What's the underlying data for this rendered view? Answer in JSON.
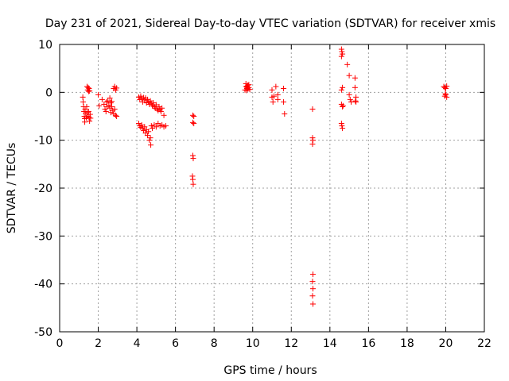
{
  "chart_data": {
    "type": "scatter",
    "title": "Day 231 of 2021, Sidereal Day-to-day VTEC variation (SDTVAR) for receiver xmis",
    "xlabel": "GPS time / hours",
    "ylabel": "SDTVAR / TECUs",
    "xlim": [
      0,
      22
    ],
    "ylim": [
      -50,
      10
    ],
    "xticks": [
      0,
      2,
      4,
      6,
      8,
      10,
      12,
      14,
      16,
      18,
      20,
      22
    ],
    "yticks": [
      10,
      0,
      -10,
      -20,
      -30,
      -40,
      -50
    ],
    "grid": true,
    "marker": "+",
    "series": [
      {
        "name": "SDTVAR",
        "color": "#ff0000",
        "points": [
          [
            1.2,
            -1.0
          ],
          [
            1.22,
            -2.0
          ],
          [
            1.24,
            -3.0
          ],
          [
            1.26,
            -4.0
          ],
          [
            1.28,
            -5.0
          ],
          [
            1.3,
            -5.5
          ],
          [
            1.3,
            -6.2
          ],
          [
            1.32,
            -3.5
          ],
          [
            1.35,
            -4.5
          ],
          [
            1.38,
            -5.3
          ],
          [
            1.4,
            -3.0
          ],
          [
            1.42,
            -4.2
          ],
          [
            1.45,
            -5.0
          ],
          [
            1.5,
            -4.0
          ],
          [
            1.52,
            -5.2
          ],
          [
            1.55,
            -6.0
          ],
          [
            1.58,
            -4.6
          ],
          [
            1.6,
            -5.4
          ],
          [
            1.42,
            1.2
          ],
          [
            1.45,
            0.5
          ],
          [
            1.48,
            1.0
          ],
          [
            1.5,
            0.2
          ],
          [
            1.52,
            0.8
          ],
          [
            1.55,
            0.3
          ],
          [
            2.0,
            -0.5
          ],
          [
            2.05,
            -2.8
          ],
          [
            2.2,
            -1.5
          ],
          [
            2.3,
            -2.5
          ],
          [
            2.35,
            -3.5
          ],
          [
            2.4,
            -4.0
          ],
          [
            2.42,
            -2.0
          ],
          [
            2.45,
            -3.0
          ],
          [
            2.5,
            -1.8
          ],
          [
            2.55,
            -2.7
          ],
          [
            2.6,
            -3.3
          ],
          [
            2.65,
            -4.2
          ],
          [
            2.7,
            -3.0
          ],
          [
            2.75,
            -3.8
          ],
          [
            2.8,
            -4.5
          ],
          [
            2.85,
            -3.5
          ],
          [
            2.9,
            -4.8
          ],
          [
            2.95,
            -5.0
          ],
          [
            2.6,
            -1.2
          ],
          [
            2.65,
            -2.2
          ],
          [
            2.7,
            -1.9
          ],
          [
            2.8,
            0.8
          ],
          [
            2.85,
            1.2
          ],
          [
            2.9,
            0.5
          ],
          [
            2.95,
            0.9
          ],
          [
            4.1,
            -1.0
          ],
          [
            4.15,
            -1.5
          ],
          [
            4.2,
            -0.8
          ],
          [
            4.25,
            -1.3
          ],
          [
            4.3,
            -2.0
          ],
          [
            4.35,
            -1.1
          ],
          [
            4.4,
            -1.6
          ],
          [
            4.45,
            -1.2
          ],
          [
            4.5,
            -2.2
          ],
          [
            4.55,
            -1.5
          ],
          [
            4.6,
            -2.0
          ],
          [
            4.65,
            -2.5
          ],
          [
            4.7,
            -1.8
          ],
          [
            4.75,
            -2.3
          ],
          [
            4.8,
            -2.8
          ],
          [
            4.85,
            -2.2
          ],
          [
            4.9,
            -3.0
          ],
          [
            4.95,
            -3.3
          ],
          [
            5.0,
            -2.6
          ],
          [
            5.05,
            -3.5
          ],
          [
            5.1,
            -3.8
          ],
          [
            5.15,
            -3.0
          ],
          [
            5.2,
            -3.6
          ],
          [
            5.25,
            -4.0
          ],
          [
            5.3,
            -3.3
          ],
          [
            5.4,
            -4.8
          ],
          [
            4.1,
            -6.5
          ],
          [
            4.15,
            -7.0
          ],
          [
            4.2,
            -7.3
          ],
          [
            4.25,
            -6.8
          ],
          [
            4.3,
            -7.5
          ],
          [
            4.35,
            -8.0
          ],
          [
            4.4,
            -7.2
          ],
          [
            4.45,
            -8.5
          ],
          [
            4.5,
            -7.8
          ],
          [
            4.55,
            -9.0
          ],
          [
            4.6,
            -8.2
          ],
          [
            4.65,
            -10.0
          ],
          [
            4.7,
            -9.5
          ],
          [
            4.72,
            -11.0
          ],
          [
            4.75,
            -7.0
          ],
          [
            4.8,
            -7.5
          ],
          [
            4.9,
            -6.8
          ],
          [
            5.0,
            -7.2
          ],
          [
            5.1,
            -6.5
          ],
          [
            5.2,
            -7.0
          ],
          [
            5.3,
            -6.8
          ],
          [
            5.4,
            -7.2
          ],
          [
            5.5,
            -7.0
          ],
          [
            6.9,
            -4.8
          ],
          [
            6.95,
            -5.0
          ],
          [
            6.9,
            -6.3
          ],
          [
            6.95,
            -6.5
          ],
          [
            6.9,
            -13.2
          ],
          [
            6.92,
            -13.8
          ],
          [
            6.88,
            -17.5
          ],
          [
            6.9,
            -18.2
          ],
          [
            6.92,
            -19.2
          ],
          [
            9.6,
            0.5
          ],
          [
            9.65,
            1.2
          ],
          [
            9.7,
            0.8
          ],
          [
            9.75,
            1.5
          ],
          [
            9.8,
            1.0
          ],
          [
            9.85,
            0.6
          ],
          [
            9.65,
            1.8
          ],
          [
            9.7,
            1.3
          ],
          [
            9.75,
            0.7
          ],
          [
            9.8,
            1.6
          ],
          [
            9.72,
            1.1
          ],
          [
            9.68,
            0.4
          ],
          [
            11.0,
            0.5
          ],
          [
            11.0,
            -1.0
          ],
          [
            11.05,
            -2.0
          ],
          [
            11.1,
            -0.8
          ],
          [
            11.2,
            1.2
          ],
          [
            11.3,
            -0.5
          ],
          [
            11.3,
            -1.5
          ],
          [
            11.6,
            0.8
          ],
          [
            11.6,
            -2.0
          ],
          [
            11.65,
            -4.5
          ],
          [
            13.1,
            -3.5
          ],
          [
            13.1,
            -9.5
          ],
          [
            13.12,
            -10.0
          ],
          [
            13.1,
            -10.8
          ],
          [
            13.12,
            -38.0
          ],
          [
            13.1,
            -39.5
          ],
          [
            13.12,
            -41.0
          ],
          [
            13.1,
            -42.5
          ],
          [
            13.12,
            -44.2
          ],
          [
            14.6,
            9.0
          ],
          [
            14.62,
            8.5
          ],
          [
            14.65,
            8.0
          ],
          [
            14.6,
            7.5
          ],
          [
            14.65,
            1.0
          ],
          [
            14.6,
            0.5
          ],
          [
            14.65,
            -3.0
          ],
          [
            14.6,
            -2.5
          ],
          [
            14.62,
            -7.0
          ],
          [
            14.65,
            -7.5
          ],
          [
            14.6,
            -6.5
          ],
          [
            14.68,
            -2.8
          ],
          [
            14.9,
            5.8
          ],
          [
            15.0,
            3.5
          ],
          [
            15.0,
            -0.5
          ],
          [
            15.05,
            -1.5
          ],
          [
            15.1,
            -2.0
          ],
          [
            15.3,
            3.0
          ],
          [
            15.3,
            1.0
          ],
          [
            15.35,
            -1.0
          ],
          [
            15.32,
            -1.8
          ],
          [
            15.35,
            -2.0
          ],
          [
            19.9,
            1.2
          ],
          [
            19.95,
            1.0
          ],
          [
            20.0,
            0.8
          ],
          [
            20.05,
            1.3
          ],
          [
            19.95,
            -0.8
          ],
          [
            20.0,
            -0.5
          ],
          [
            20.05,
            -1.0
          ],
          [
            19.98,
            -0.3
          ]
        ]
      }
    ]
  }
}
